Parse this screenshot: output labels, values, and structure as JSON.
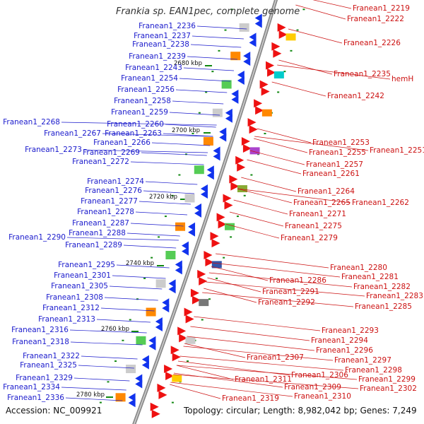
{
  "header": {
    "title": "Frankia sp. EAN1pec, complete genome"
  },
  "footer": {
    "accession": "Accession: NC_009921",
    "summary": "Topology: circular; Length: 8,982,042 bp; Genes: 7,249"
  },
  "scale_labels": [
    "2680 kbp",
    "2700 kbp",
    "2720 kbp",
    "2740 kbp",
    "2760 kbp",
    "2780 kbp"
  ],
  "left_genes": [
    "Franean1_2236",
    "Franean1_2237",
    "Franean1_2238",
    "Franean1_2239",
    "Franean1_2243",
    "Franean1_2254",
    "Franean1_2256",
    "Franean1_2258",
    "Franean1_2259",
    "Franean1_2260",
    "Franean1_2268",
    "Franean1_2267",
    "Franean1_2263",
    "Franean1_2266",
    "Franean1_2273",
    "Franean1_2269",
    "Franean1_2272",
    "Franean1_2274",
    "Franean1_2276",
    "Franean1_2277",
    "Franean1_2278",
    "Franean1_2287",
    "Franean1_2288",
    "Franean1_2290",
    "Franean1_2289",
    "Franean1_2295",
    "Franean1_2301",
    "Franean1_2305",
    "Franean1_2308",
    "Franean1_2312",
    "Franean1_2313",
    "Franean1_2316",
    "Franean1_2318",
    "Franean1_2322",
    "Franean1_2325",
    "Franean1_2329",
    "Franean1_2334",
    "Franean1_2336"
  ],
  "right_genes": [
    "Franean1_2219",
    "Franean1_2222",
    "Franean1_2226",
    "Franean1_2235",
    "hemH",
    "Franean1_2242",
    "Franean1_2253",
    "Franean1_2251",
    "Franean1_2255",
    "Franean1_2257",
    "Franean1_2261",
    "Franean1_2264",
    "Franean1_2265",
    "Franean1_2262",
    "Franean1_2271",
    "Franean1_2275",
    "Franean1_2279",
    "Franean1_2280",
    "Franean1_2281",
    "Franean1_2282",
    "Franean1_2286",
    "Franean1_2283",
    "Franean1_2291",
    "Franean1_2292",
    "Franean1_2285",
    "Franean1_2293",
    "Franean1_2294",
    "Franean1_2296",
    "Franean1_2307",
    "Franean1_2297",
    "Franean1_2298",
    "Franean1_2306",
    "Franean1_2299",
    "Franean1_2311",
    "Franean1_2309",
    "Franean1_2302",
    "Franean1_2310",
    "Franean1_2319"
  ],
  "colors": {
    "left_label": "#1a1acc",
    "right_label": "#cc1111",
    "backbone": "#8a8a8a",
    "forward_feature": "#ee1111",
    "reverse_feature": "#1133ee",
    "rna_marker": "#118811"
  }
}
